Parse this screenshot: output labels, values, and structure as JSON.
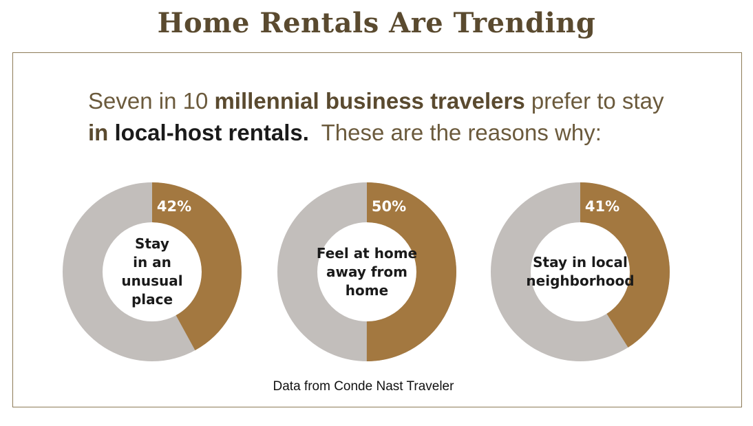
{
  "title": "Home Rentals Are Trending",
  "subtitle": {
    "line1_part1": "Seven in 10 ",
    "line1_bold": "millennial business travelers",
    "line1_part2": " prefer to stay",
    "line2_bold_in": "in ",
    "line2_bold_dark": "local-host rentals.",
    "line2_part2": "  These are the reasons why:"
  },
  "source": "Data from Conde Nast Traveler",
  "colors": {
    "highlight": "#a37840",
    "remainder": "#c2bebb"
  },
  "chart_data": [
    {
      "type": "pie",
      "label": "Stay\nin an\nunusual\nplace",
      "value": 42,
      "value_label": "42%"
    },
    {
      "type": "pie",
      "label": "Feel at home\naway from\nhome",
      "value": 50,
      "value_label": "50%"
    },
    {
      "type": "pie",
      "label": "Stay in local\nneighborhood",
      "value": 41,
      "value_label": "41%"
    }
  ]
}
